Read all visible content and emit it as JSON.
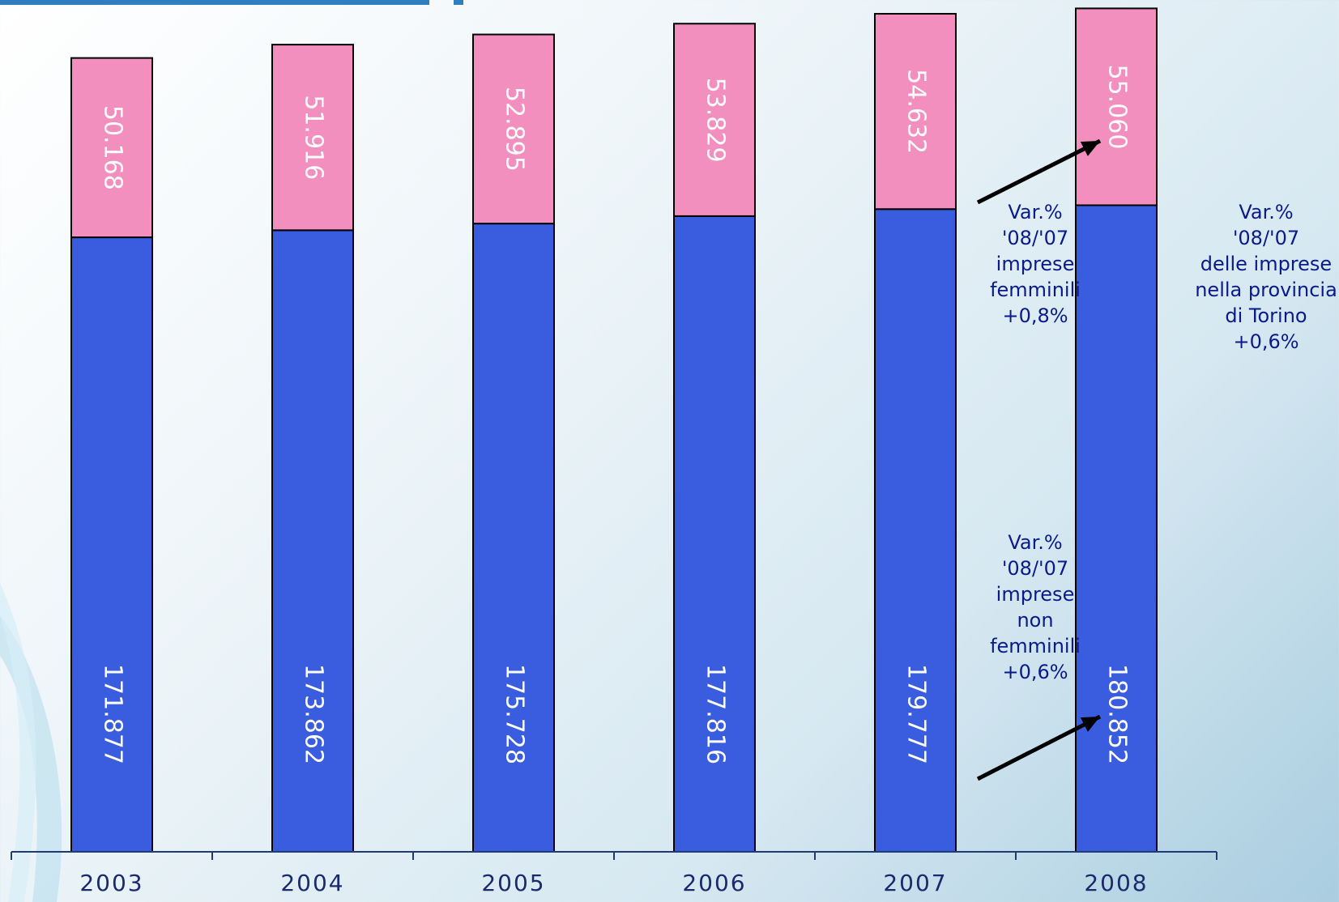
{
  "chart_data": {
    "type": "bar",
    "stacked": true,
    "categories": [
      "2003",
      "2004",
      "2005",
      "2006",
      "2007",
      "2008"
    ],
    "series": [
      {
        "values_label": [
          "171.877",
          "173.862",
          "175.728",
          "177.816",
          "179.777",
          "180.852"
        ],
        "values": [
          171877,
          173862,
          175728,
          177816,
          179777,
          180852
        ],
        "color": "#3a5de0"
      },
      {
        "values_label": [
          "50.168",
          "51.916",
          "52.895",
          "53.829",
          "54.632",
          "55.060"
        ],
        "values": [
          50168,
          51916,
          52895,
          53829,
          54632,
          55060
        ],
        "color": "#f28fbf"
      }
    ],
    "ylim": [
      0,
      236000
    ],
    "grid": false,
    "legend": "none",
    "annotations": [
      {
        "text": "Var.%\n'08/'07\nimprese\nfemminili\n+0,8%"
      },
      {
        "text": "Var.%\n'08/'07\nimprese\nnon\nfemminili\n+0,6%"
      },
      {
        "text": "Var.%\n'08/'07\ndelle imprese\nnella provincia\ndi Torino\n+0,6%"
      }
    ]
  },
  "colors": {
    "accent": "#2f7fc0",
    "annotation_text": "#0a1a8c",
    "bar_label_text": "#ffffff",
    "axis": "#1f3b73"
  }
}
